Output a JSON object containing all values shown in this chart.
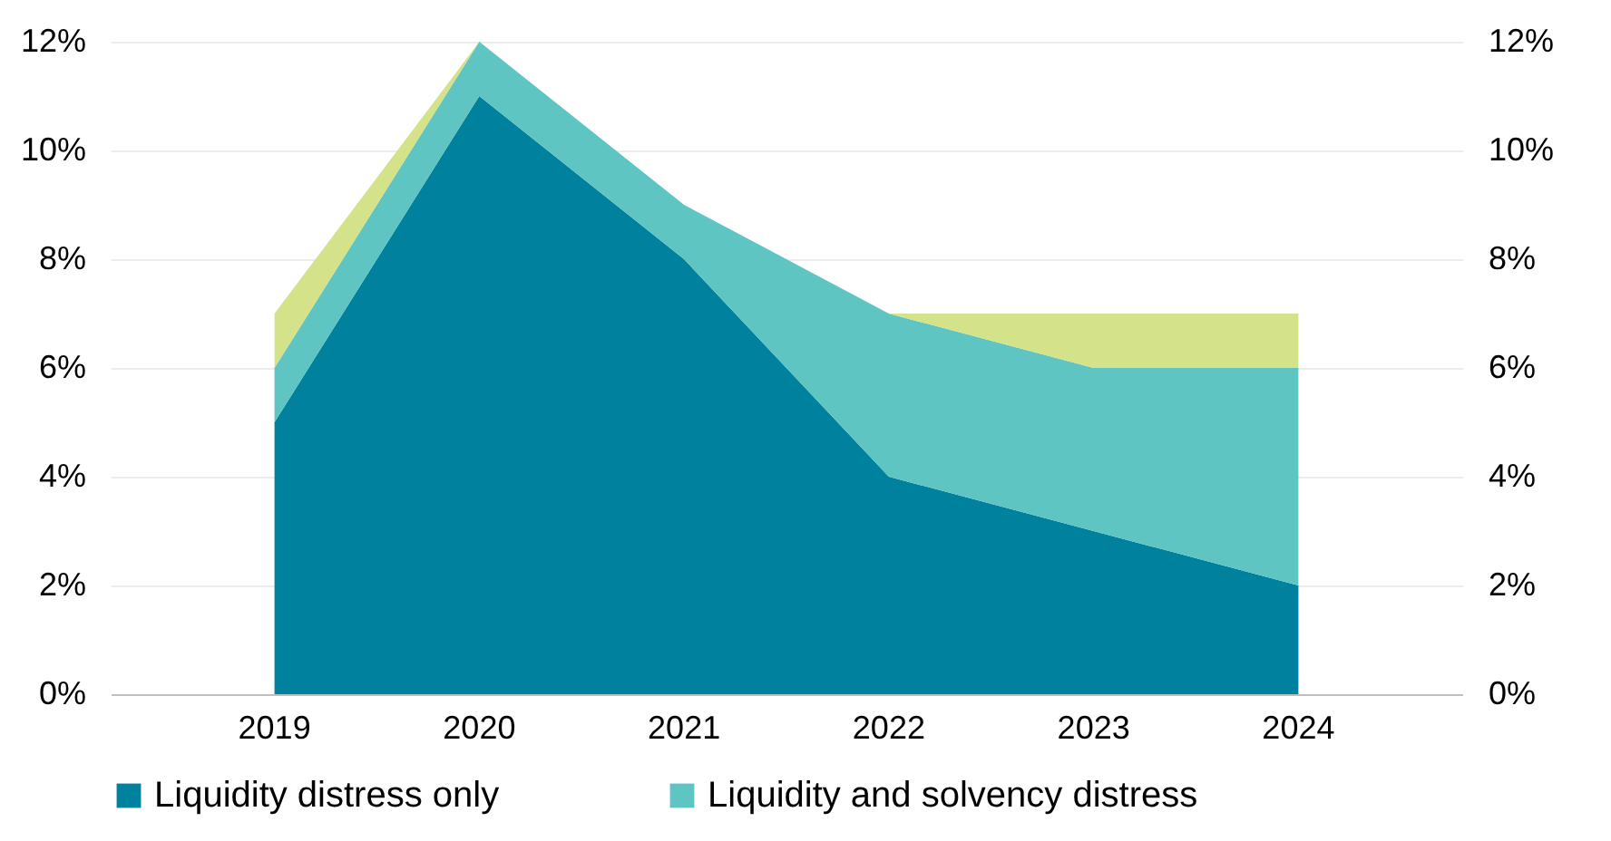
{
  "chart_data": {
    "type": "area",
    "stacked": true,
    "categories": [
      "2019",
      "2020",
      "2021",
      "2022",
      "2023",
      "2024"
    ],
    "series": [
      {
        "name": "Liquidity distress only",
        "color": "#00819e",
        "values": [
          5,
          11,
          8,
          4,
          3,
          2
        ]
      },
      {
        "name": "Liquidity and solvency distress",
        "color": "#5ec5c2",
        "values": [
          1,
          1,
          1,
          3,
          3,
          4
        ]
      },
      {
        "color": "#d4e28a",
        "values": [
          1,
          0,
          0,
          0,
          1,
          1
        ]
      }
    ],
    "ylim": [
      0,
      12
    ],
    "yticks": [
      {
        "value": 0,
        "label": "0%"
      },
      {
        "value": 2,
        "label": "2%"
      },
      {
        "value": 4,
        "label": "4%"
      },
      {
        "value": 6,
        "label": "6%"
      },
      {
        "value": 8,
        "label": "8%"
      },
      {
        "value": 10,
        "label": "10%"
      },
      {
        "value": 12,
        "label": "12%"
      }
    ],
    "y2lim": [
      0,
      12
    ],
    "y2ticks": [
      {
        "value": 0,
        "label": "0%"
      },
      {
        "value": 2,
        "label": "2%"
      },
      {
        "value": 4,
        "label": "4%"
      },
      {
        "value": 6,
        "label": "6%"
      },
      {
        "value": 8,
        "label": "8%"
      },
      {
        "value": 10,
        "label": "10%"
      },
      {
        "value": 12,
        "label": "12%"
      }
    ],
    "grid": "y",
    "legend": "bottom"
  }
}
